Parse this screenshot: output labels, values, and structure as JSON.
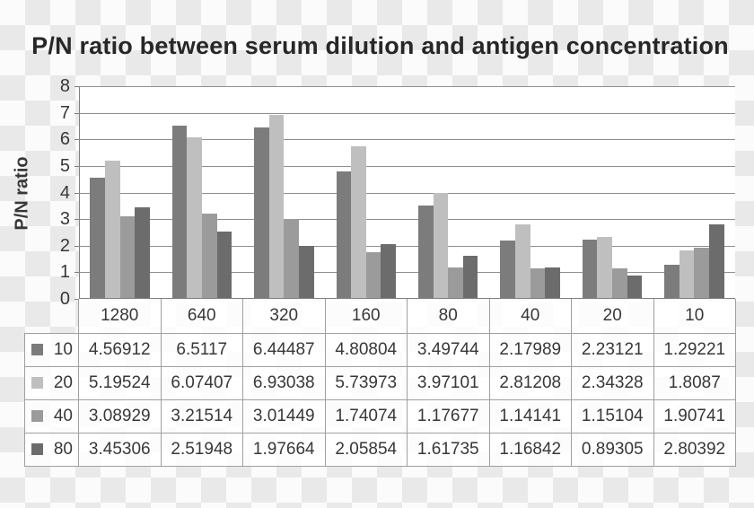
{
  "title": "P/N ratio between serum dilution and antigen concentration",
  "y_axis": {
    "label": "P/N ratio",
    "tick_labels": [
      "0",
      "1",
      "2",
      "3",
      "4",
      "5",
      "6",
      "7",
      "8"
    ]
  },
  "chart_data": {
    "type": "bar",
    "title": "P/N ratio between serum dilution and antigen concentration",
    "xlabel": "",
    "ylabel": "P/N ratio",
    "ylim": [
      0,
      8
    ],
    "yticks": [
      0,
      1,
      2,
      3,
      4,
      5,
      6,
      7,
      8
    ],
    "grid": true,
    "legend_position": "data-table-left-column",
    "categories": [
      "1280",
      "640",
      "320",
      "160",
      "80",
      "40",
      "20",
      "10"
    ],
    "series": [
      {
        "name": "10",
        "color": "#7c7c7c",
        "values": [
          4.56912,
          6.5117,
          6.44487,
          4.80804,
          3.49744,
          2.17989,
          2.23121,
          1.29221
        ]
      },
      {
        "name": "20",
        "color": "#bfbfbf",
        "values": [
          5.19524,
          6.07407,
          6.93038,
          5.73973,
          3.97101,
          2.81208,
          2.34328,
          1.8087
        ]
      },
      {
        "name": "40",
        "color": "#9b9b9b",
        "values": [
          3.08929,
          3.21514,
          3.01449,
          1.74074,
          1.17677,
          1.14141,
          1.15104,
          1.90741
        ]
      },
      {
        "name": "80",
        "color": "#6c6c6c",
        "values": [
          3.45306,
          2.51948,
          1.97664,
          2.05854,
          1.61735,
          1.16842,
          0.89305,
          2.80392
        ]
      }
    ]
  },
  "colors": {
    "checker_light": "#fbfbfb",
    "checker_dark": "#e9e9e9",
    "plot_background": "#ffffff",
    "gridline": "#8f8f8f",
    "axis": "#7f7f7f",
    "table_border": "#a0a0a0",
    "table_cell_background": "rgba(255,255,255,0.85)",
    "text": "#383838",
    "title_text": "#272727"
  }
}
